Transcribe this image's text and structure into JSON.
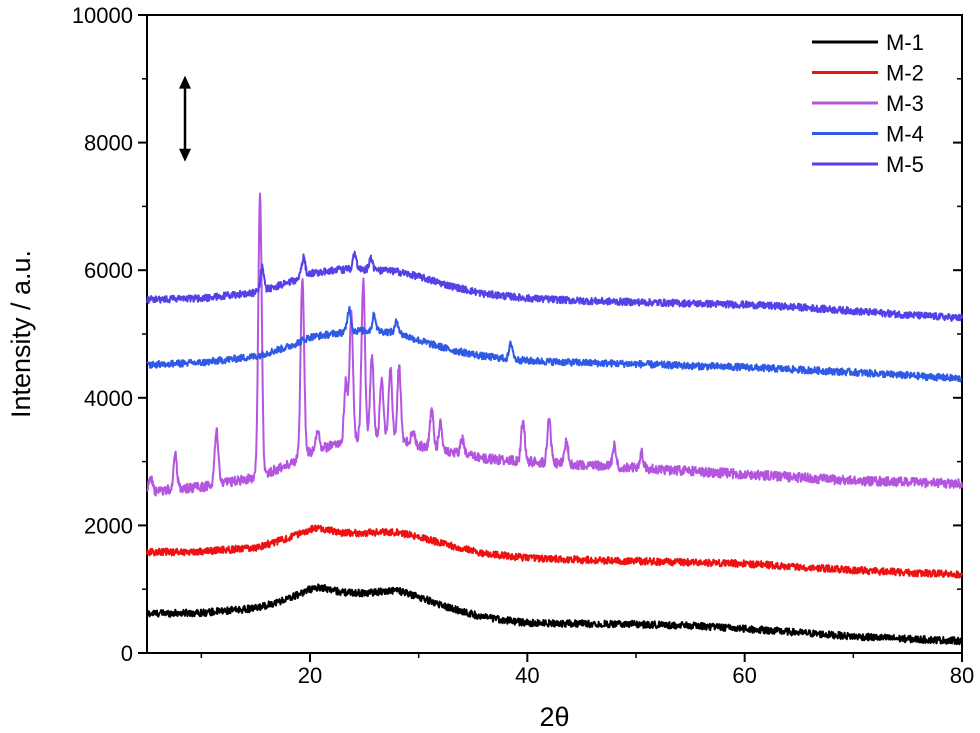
{
  "chart_data": {
    "type": "line",
    "xlabel": "2θ",
    "ylabel": "Intensity / a.u.",
    "xlim": [
      5,
      80
    ],
    "ylim": [
      0,
      10000
    ],
    "x_ticks": [
      20,
      40,
      60,
      80
    ],
    "y_ticks": [
      0,
      2000,
      4000,
      6000,
      8000,
      10000
    ],
    "x_tick_labels": [
      "20",
      "40",
      "60",
      "80"
    ],
    "y_tick_labels": [
      "0",
      "2000",
      "4000",
      "6000",
      "8000",
      "10000"
    ],
    "legend_position": "top-right",
    "grid": false,
    "annotation": "double-headed vertical arrow near top-left, from ~9000 to ~7700",
    "series": [
      {
        "name": "M-1",
        "color": "#000000",
        "x": [
          5,
          10,
          15,
          18,
          20,
          21,
          23,
          25,
          27,
          28,
          30,
          33,
          36,
          40,
          45,
          50,
          55,
          60,
          65,
          70,
          75,
          80
        ],
        "values": [
          620,
          630,
          700,
          850,
          1000,
          1030,
          950,
          940,
          970,
          980,
          880,
          700,
          560,
          470,
          460,
          450,
          430,
          380,
          320,
          260,
          220,
          190
        ]
      },
      {
        "name": "M-2",
        "color": "#ee1111",
        "x": [
          5,
          10,
          15,
          18,
          20,
          21,
          23,
          25,
          27,
          28,
          30,
          33,
          36,
          40,
          45,
          50,
          55,
          60,
          65,
          70,
          75,
          80
        ],
        "values": [
          1580,
          1590,
          1650,
          1800,
          1940,
          1950,
          1880,
          1880,
          1900,
          1890,
          1820,
          1680,
          1560,
          1490,
          1460,
          1440,
          1420,
          1400,
          1350,
          1300,
          1260,
          1230
        ]
      },
      {
        "name": "M-3",
        "color": "#b455e0",
        "x": [
          5,
          7,
          10,
          15,
          18,
          20,
          22,
          25,
          28,
          30,
          33,
          36,
          40,
          45,
          50,
          55,
          60,
          65,
          70,
          75,
          80
        ],
        "values": [
          2500,
          2560,
          2600,
          2750,
          2950,
          3150,
          3250,
          3400,
          3350,
          3250,
          3150,
          3050,
          3000,
          2950,
          2900,
          2850,
          2800,
          2750,
          2700,
          2680,
          2650
        ],
        "peaks_x": [
          5.3,
          7.6,
          11.4,
          15.4,
          19.3,
          20.7,
          23.3,
          23.8,
          24.9,
          25.7,
          26.6,
          27.4,
          28.2,
          29.5,
          31.2,
          32.0,
          34.0,
          39.6,
          42.0,
          43.6,
          48.0,
          50.5
        ],
        "peaks_height": [
          2780,
          3100,
          3520,
          7180,
          5880,
          3500,
          4250,
          5300,
          5820,
          4620,
          4300,
          4450,
          4500,
          3500,
          3800,
          3600,
          3350,
          3650,
          3700,
          3300,
          3250,
          3150
        ]
      },
      {
        "name": "M-4",
        "color": "#2f5ae6",
        "x": [
          5,
          10,
          15,
          18,
          20,
          22,
          24,
          26,
          28,
          30,
          33,
          36,
          40,
          45,
          50,
          55,
          60,
          65,
          70,
          75,
          80
        ],
        "values": [
          4520,
          4550,
          4650,
          4800,
          4950,
          5000,
          5050,
          5050,
          5020,
          4900,
          4750,
          4650,
          4580,
          4550,
          4530,
          4500,
          4480,
          4440,
          4400,
          4350,
          4300
        ],
        "peaks_x": [
          23.6,
          25.9,
          28.0,
          38.5
        ],
        "peaks_height": [
          5400,
          5300,
          5200,
          4850
        ]
      },
      {
        "name": "M-5",
        "color": "#5541e8",
        "x": [
          5,
          10,
          15,
          18,
          20,
          22,
          24,
          26,
          28,
          30,
          33,
          36,
          40,
          45,
          50,
          55,
          60,
          65,
          70,
          75,
          80
        ],
        "values": [
          5540,
          5560,
          5650,
          5800,
          5950,
          6000,
          6020,
          6000,
          5980,
          5900,
          5750,
          5630,
          5560,
          5520,
          5500,
          5480,
          5460,
          5420,
          5360,
          5300,
          5250
        ],
        "peaks_x": [
          15.6,
          19.4,
          24.1,
          25.6
        ],
        "peaks_height": [
          6050,
          6200,
          6250,
          6200
        ]
      }
    ]
  }
}
